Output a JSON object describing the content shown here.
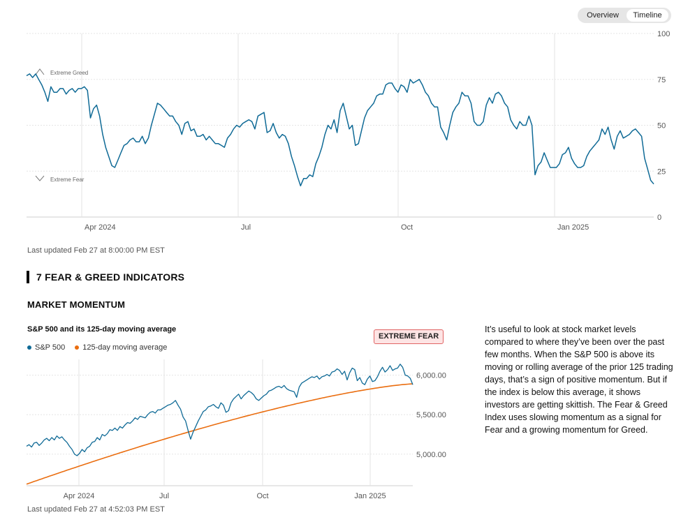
{
  "toggle": {
    "overview": "Overview",
    "timeline": "Timeline",
    "active": "Timeline"
  },
  "colors": {
    "index_line": "#0f6a96",
    "ma_line": "#ea6d0f",
    "badge_bg": "#fde4e4",
    "badge_border": "#e06464"
  },
  "timeline_chart": {
    "type": "line",
    "ylim": [
      0,
      100
    ],
    "yticks": [
      "100",
      "75",
      "50",
      "25",
      "0"
    ],
    "xticks": [
      "Apr 2024",
      "Jul",
      "Oct",
      "Jan 2025"
    ],
    "annotations": {
      "greed": "Extreme Greed",
      "fear": "Extreme Fear"
    },
    "values": [
      77,
      78,
      76,
      78,
      75,
      72,
      68,
      63,
      71,
      68,
      68,
      70,
      70,
      67,
      69,
      70,
      68,
      70,
      70,
      71,
      69,
      54,
      59,
      61,
      55,
      45,
      38,
      33,
      28,
      27,
      31,
      35,
      39,
      40,
      42,
      43,
      41,
      41,
      44,
      40,
      43,
      50,
      56,
      62,
      61,
      59,
      57,
      55,
      55,
      52,
      50,
      45,
      51,
      52,
      47,
      48,
      44,
      44,
      45,
      42,
      44,
      42,
      40,
      40,
      39,
      38,
      43,
      45,
      48,
      50,
      49,
      51,
      52,
      53,
      52,
      48,
      55,
      56,
      57,
      46,
      47,
      51,
      46,
      43,
      45,
      44,
      40,
      33,
      28,
      22,
      17,
      21,
      21,
      23,
      22,
      29,
      33,
      38,
      45,
      50,
      48,
      53,
      46,
      58,
      62,
      55,
      48,
      50,
      39,
      40,
      47,
      54,
      58,
      60,
      62,
      66,
      67,
      67,
      72,
      73,
      73,
      70,
      68,
      72,
      71,
      68,
      75,
      73,
      74,
      75,
      72,
      68,
      66,
      62,
      60,
      60,
      49,
      46,
      42,
      50,
      57,
      60,
      62,
      68,
      66,
      66,
      62,
      52,
      50,
      50,
      52,
      61,
      65,
      62,
      67,
      68,
      66,
      62,
      60,
      53,
      50,
      48,
      52,
      50,
      50,
      55,
      50,
      23,
      28,
      30,
      35,
      31,
      27,
      27,
      27,
      29,
      34,
      35,
      38,
      32,
      29,
      27,
      27,
      28,
      33,
      36,
      38,
      40,
      42,
      48,
      45,
      49,
      42,
      37,
      44,
      47,
      43,
      44,
      45,
      47,
      48,
      46,
      44,
      32,
      26,
      20,
      18
    ]
  },
  "timeline_updated": "Last updated Feb 27 at 8:00:00 PM EST",
  "section_title": "7 FEAR & GREED INDICATORS",
  "sub_title": "MARKET MOMENTUM",
  "momentum_chart": {
    "type": "line",
    "title": "S&P 500 and its 125-day moving average",
    "legend": {
      "sp500": "S&P 500",
      "ma": "125-day moving average"
    },
    "badge": "EXTREME FEAR",
    "yticks": [
      {
        "label": "6,000.00",
        "value": 6000
      },
      {
        "label": "5,500.00",
        "value": 5500
      },
      {
        "label": "5,000.00",
        "value": 5000
      }
    ],
    "ylim": [
      4600,
      6200
    ],
    "xticks": [
      "Apr 2024",
      "Jul",
      "Oct",
      "Jan 2025"
    ],
    "sp500": [
      5100,
      5120,
      5090,
      5140,
      5150,
      5110,
      5140,
      5180,
      5200,
      5170,
      5210,
      5180,
      5230,
      5200,
      5220,
      5180,
      5150,
      5100,
      5060,
      5000,
      4980,
      5010,
      5060,
      5030,
      5080,
      5100,
      5150,
      5160,
      5210,
      5180,
      5250,
      5230,
      5260,
      5310,
      5300,
      5330,
      5300,
      5350,
      5330,
      5370,
      5400,
      5390,
      5420,
      5460,
      5440,
      5480,
      5470,
      5460,
      5500,
      5530,
      5540,
      5520,
      5560,
      5560,
      5580,
      5600,
      5620,
      5630,
      5650,
      5680,
      5620,
      5570,
      5470,
      5420,
      5300,
      5190,
      5280,
      5350,
      5420,
      5480,
      5540,
      5560,
      5600,
      5610,
      5630,
      5600,
      5580,
      5650,
      5620,
      5530,
      5550,
      5650,
      5700,
      5730,
      5760,
      5700,
      5740,
      5770,
      5800,
      5780,
      5750,
      5700,
      5680,
      5710,
      5740,
      5760,
      5800,
      5810,
      5830,
      5850,
      5860,
      5840,
      5870,
      5830,
      5810,
      5800,
      5790,
      5720,
      5850,
      5900,
      5920,
      5940,
      5960,
      5980,
      5970,
      5990,
      5950,
      5980,
      5990,
      6010,
      5990,
      6040,
      6050,
      6080,
      6060,
      6010,
      6050,
      5940,
      6030,
      6090,
      6070,
      5930,
      5970,
      5900,
      5880,
      5950,
      5990,
      5920,
      5930,
      5980,
      6050,
      6100,
      6040,
      6070,
      6120,
      6060,
      6080,
      6090,
      6140,
      6100,
      6000,
      5990,
      5960,
      5880
    ]
  },
  "momentum_updated": "Last updated Feb 27 at 4:52:03 PM EST",
  "description": "It’s useful to look at stock market levels compared to where they’ve been over the past few months. When the S&P 500 is above its moving or rolling average of the prior 125 trading days, that’s a sign of positive momentum. But if the index is below this average, it shows investors are getting skittish. The Fear & Greed Index uses slowing momentum as a signal for Fear and a growing momentum for Greed."
}
